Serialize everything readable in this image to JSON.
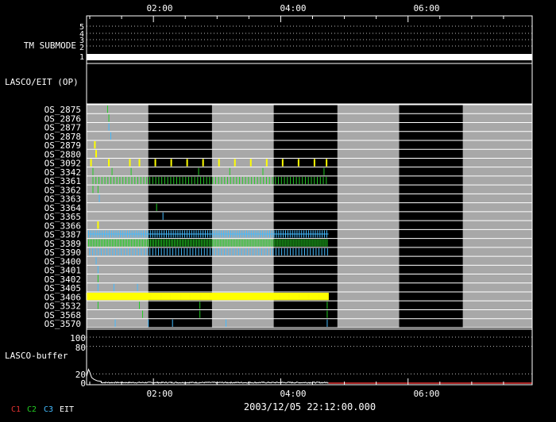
{
  "chart_data": {
    "type": "timeline",
    "time_axis": {
      "range_hours": [
        0.95,
        7.95
      ],
      "tick_labels": [
        "02:00",
        "04:00",
        "06:00"
      ],
      "tick_hours": [
        2,
        4,
        6
      ]
    },
    "panels": {
      "submode": {
        "label": "TM SUBMODE",
        "y_ticks": [
          "5",
          "4",
          "3",
          "2",
          "1"
        ],
        "value": 1,
        "end_hour": 7.95
      },
      "lasco_eit_op": {
        "label": "LASCO/EIT (OP)"
      },
      "os_programs": {
        "rows": [
          "OS_2875",
          "OS_2876",
          "OS_2877",
          "OS_2878",
          "OS_2879",
          "OS_2880",
          "OS_3092",
          "OS_3342",
          "OS_3361",
          "OS_3362",
          "OS_3363",
          "OS_3364",
          "OS_3365",
          "OS_3366",
          "OS_3387",
          "OS_3389",
          "OS_3390",
          "OS_3400",
          "OS_3401",
          "OS_3402",
          "OS_3405",
          "OS_3406",
          "OS_3532",
          "OS_3568",
          "OS_3570"
        ],
        "orbit_bands_hours": [
          [
            0.95,
            1.92
          ],
          [
            2.92,
            3.89
          ],
          [
            4.89,
            5.86
          ],
          [
            6.86,
            7.95
          ]
        ],
        "data_end_hour": 4.75,
        "camera_colors": {
          "C1": "#e03030",
          "C2": "#22cc22",
          "C3": "#44bbff",
          "EIT": "#ffffff",
          "yellow": "#ffff00"
        },
        "events": [
          {
            "row": "OS_2875",
            "camera": "C2",
            "hours": [
              1.28
            ]
          },
          {
            "row": "OS_2876",
            "camera": "C2",
            "hours": [
              1.3
            ]
          },
          {
            "row": "OS_2877",
            "camera": "C3",
            "hours": [
              1.3
            ]
          },
          {
            "row": "OS_2878",
            "camera": "C3",
            "hours": [
              1.33
            ]
          },
          {
            "row": "OS_2879",
            "camera": "yellow",
            "hours": [
              1.08
            ]
          },
          {
            "row": "OS_2880",
            "camera": "yellow",
            "hours": [
              1.1
            ]
          },
          {
            "row": "OS_3092",
            "camera": "yellow",
            "hours": [
              1.02,
              1.3,
              1.63,
              1.78,
              2.03,
              2.28,
              2.53,
              2.78,
              3.03,
              3.28,
              3.53,
              3.78,
              4.03,
              4.28,
              4.53,
              4.72
            ]
          },
          {
            "row": "OS_3342",
            "camera": "C2",
            "hours": [
              1.05,
              1.35,
              1.65,
              2.71,
              3.2,
              3.72,
              4.68
            ]
          },
          {
            "row": "OS_3362",
            "camera": "C2",
            "hours": [
              1.05,
              1.13
            ]
          },
          {
            "row": "OS_3363",
            "camera": "C3",
            "hours": [
              1.15
            ]
          },
          {
            "row": "OS_3364",
            "camera": "C2",
            "hours": [
              2.05
            ]
          },
          {
            "row": "OS_3365",
            "camera": "C3",
            "hours": [
              2.15
            ]
          },
          {
            "row": "OS_3366",
            "camera": "yellow",
            "hours": [
              1.13
            ]
          },
          {
            "row": "OS_3400",
            "camera": "C3",
            "hours": [
              1.1
            ]
          },
          {
            "row": "OS_3401",
            "camera": "C3",
            "hours": [
              1.13
            ]
          },
          {
            "row": "OS_3402",
            "camera": "C2",
            "hours": [
              1.13
            ]
          },
          {
            "row": "OS_3405",
            "camera": "C3",
            "hours": [
              1.13,
              1.38,
              1.75
            ]
          },
          {
            "row": "OS_3532",
            "camera": "C2",
            "hours": [
              1.13,
              1.78,
              2.73,
              4.73
            ]
          },
          {
            "row": "OS_3568",
            "camera": "C2",
            "hours": [
              1.83,
              2.73,
              4.73
            ]
          },
          {
            "row": "OS_3570",
            "camera": "C3",
            "hours": [
              1.4,
              1.92,
              2.3,
              3.14,
              4.73
            ]
          }
        ],
        "dense_rows": [
          {
            "row": "OS_3361",
            "camera": "C2",
            "start_hour": 1.05,
            "end_hour": 4.75,
            "step_hours": 0.047
          },
          {
            "row": "OS_3387",
            "camera": "C3",
            "start_hour": 0.98,
            "end_hour": 4.75,
            "step_hours": 0.036
          },
          {
            "row": "OS_3389",
            "camera": "C2",
            "start_hour": 0.98,
            "end_hour": 4.75,
            "step_hours": 0.025
          },
          {
            "row": "OS_3390",
            "camera": "C3",
            "start_hour": 1.0,
            "end_hour": 4.75,
            "step_hours": 0.045
          },
          {
            "row": "OS_3406",
            "camera": "yellow",
            "start_hour": 0.95,
            "end_hour": 4.75,
            "step_hours": 0.013
          }
        ]
      },
      "buffer": {
        "label": "LASCO-buffer",
        "y_ticks": [
          "100",
          "80",
          "20",
          "0"
        ],
        "y_tick_values": [
          100,
          80,
          20,
          0
        ],
        "ylim": [
          0,
          100
        ],
        "spike": [
          [
            0.95,
            14
          ],
          [
            0.98,
            30
          ],
          [
            1.0,
            24
          ],
          [
            1.03,
            12
          ],
          [
            1.07,
            8
          ],
          [
            1.12,
            5
          ],
          [
            1.18,
            4
          ]
        ],
        "noise_level": 2.5,
        "data_end_hour": 4.75,
        "red_from_hour": 4.75
      }
    },
    "date_label": "2003/12/05 22:12:00.000",
    "camera_legend": [
      {
        "label": "C1",
        "color": "#e03030"
      },
      {
        "label": "C2",
        "color": "#22cc22"
      },
      {
        "label": "C3",
        "color": "#44bbff"
      },
      {
        "label": "EIT",
        "color": "#ffffff"
      }
    ]
  }
}
